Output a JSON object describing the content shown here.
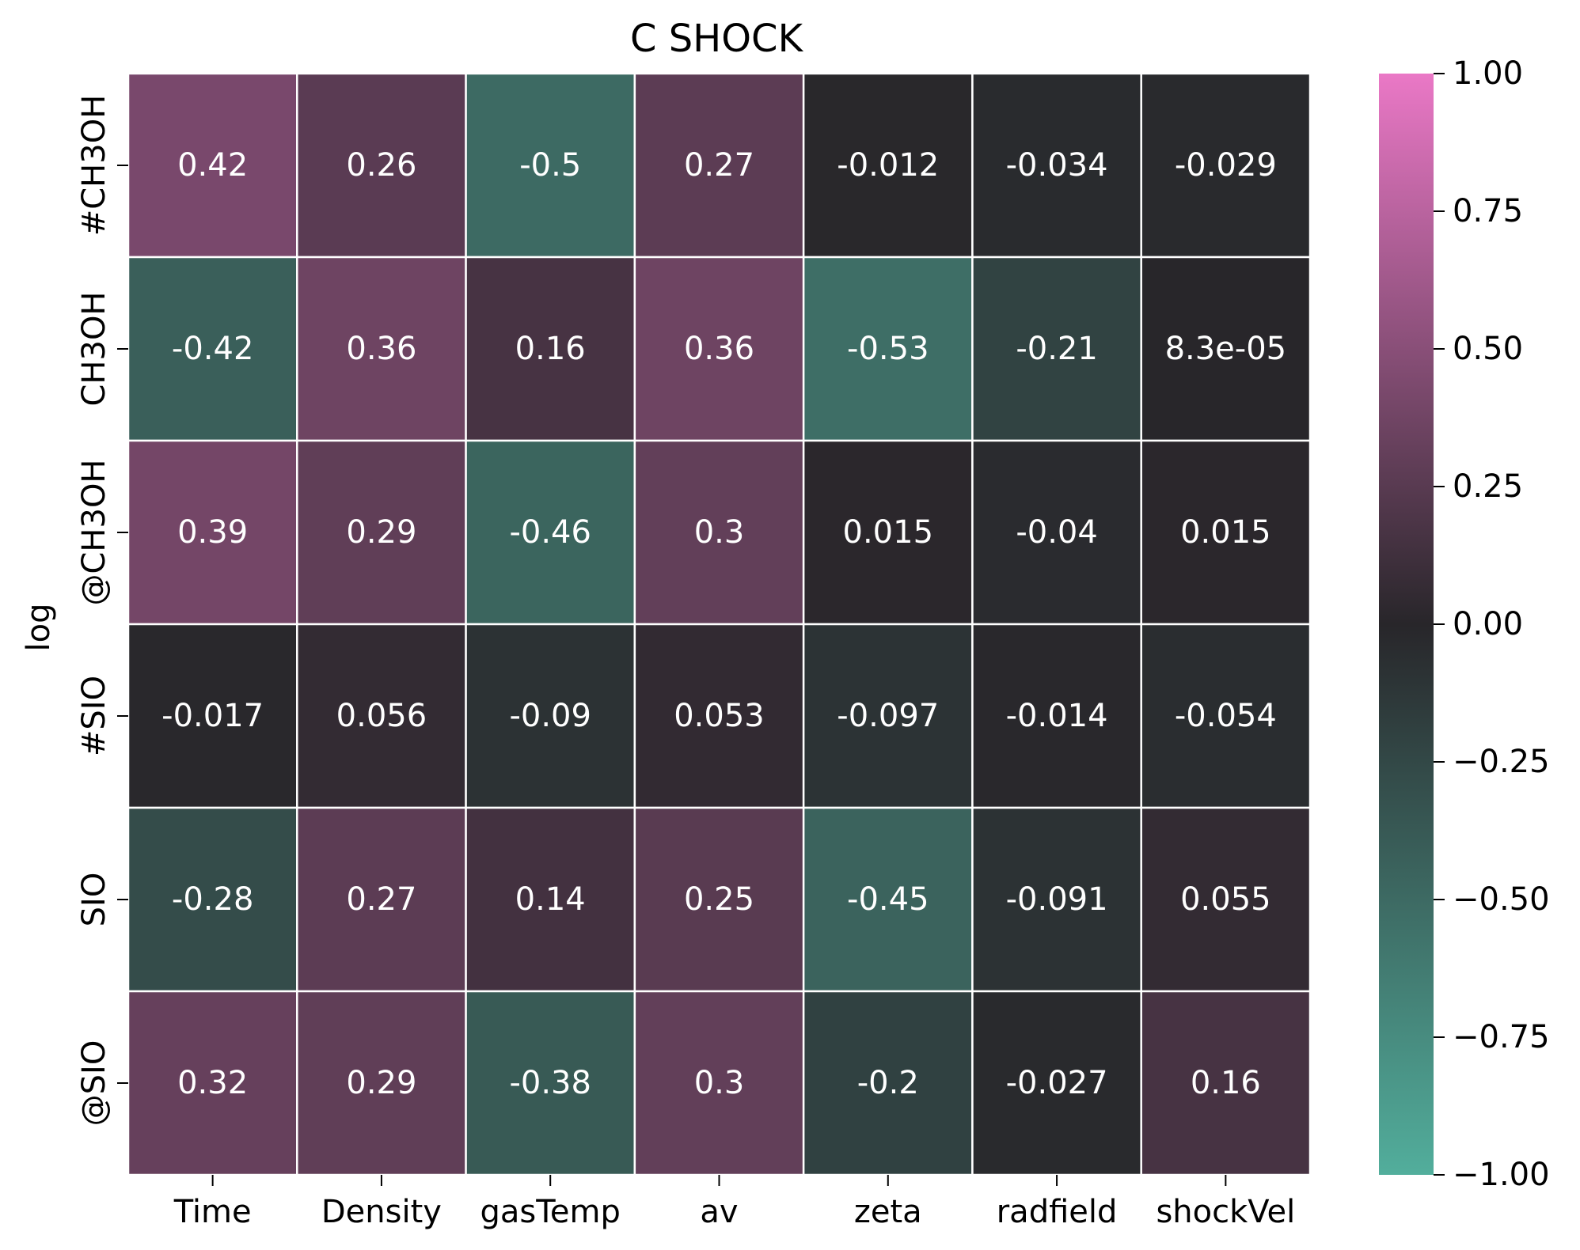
{
  "chart_data": {
    "type": "heatmap",
    "title": "C SHOCK",
    "xlabel": "",
    "ylabel": "log",
    "columns": [
      "Time",
      "Density",
      "gasTemp",
      "av",
      "zeta",
      "radfield",
      "shockVel"
    ],
    "rows": [
      "#CH3OH",
      "CH3OH",
      "@CH3OH",
      "#SIO",
      "SIO",
      "@SIO"
    ],
    "values": [
      [
        0.42,
        0.26,
        -0.5,
        0.27,
        -0.012,
        -0.034,
        -0.029
      ],
      [
        -0.42,
        0.36,
        0.16,
        0.36,
        -0.53,
        -0.21,
        8.3e-05
      ],
      [
        0.39,
        0.29,
        -0.46,
        0.3,
        0.015,
        -0.04,
        0.015
      ],
      [
        -0.017,
        0.056,
        -0.09,
        0.053,
        -0.097,
        -0.014,
        -0.054
      ],
      [
        -0.28,
        0.27,
        0.14,
        0.25,
        -0.45,
        -0.091,
        0.055
      ],
      [
        0.32,
        0.29,
        -0.38,
        0.3,
        -0.2,
        -0.027,
        0.16
      ]
    ],
    "annotations": [
      [
        "0.42",
        "0.26",
        "-0.5",
        "0.27",
        "-0.012",
        "-0.034",
        "-0.029"
      ],
      [
        "-0.42",
        "0.36",
        "0.16",
        "0.36",
        "-0.53",
        "-0.21",
        "8.3e-05"
      ],
      [
        "0.39",
        "0.29",
        "-0.46",
        "0.3",
        "0.015",
        "-0.04",
        "0.015"
      ],
      [
        "-0.017",
        "0.056",
        "-0.09",
        "0.053",
        "-0.097",
        "-0.014",
        "-0.054"
      ],
      [
        "-0.28",
        "0.27",
        "0.14",
        "0.25",
        "-0.45",
        "-0.091",
        "0.055"
      ],
      [
        "0.32",
        "0.29",
        "-0.38",
        "0.3",
        "-0.2",
        "-0.027",
        "0.16"
      ]
    ],
    "colorbar": {
      "vmin": -1.0,
      "vmax": 1.0,
      "ticks": [
        1.0,
        0.75,
        0.5,
        0.25,
        0.0,
        -0.25,
        -0.5,
        -0.75,
        -1.0
      ],
      "tick_labels": [
        "1.00",
        "0.75",
        "0.50",
        "0.25",
        "0.00",
        "−0.25",
        "−0.50",
        "−0.75",
        "−1.00"
      ],
      "colors": {
        "min": "#52AE9C",
        "mid": "#28262A",
        "max": "#EA78C6"
      }
    },
    "grid_line_color": "#ffffff",
    "legend": "colorbar-right"
  }
}
